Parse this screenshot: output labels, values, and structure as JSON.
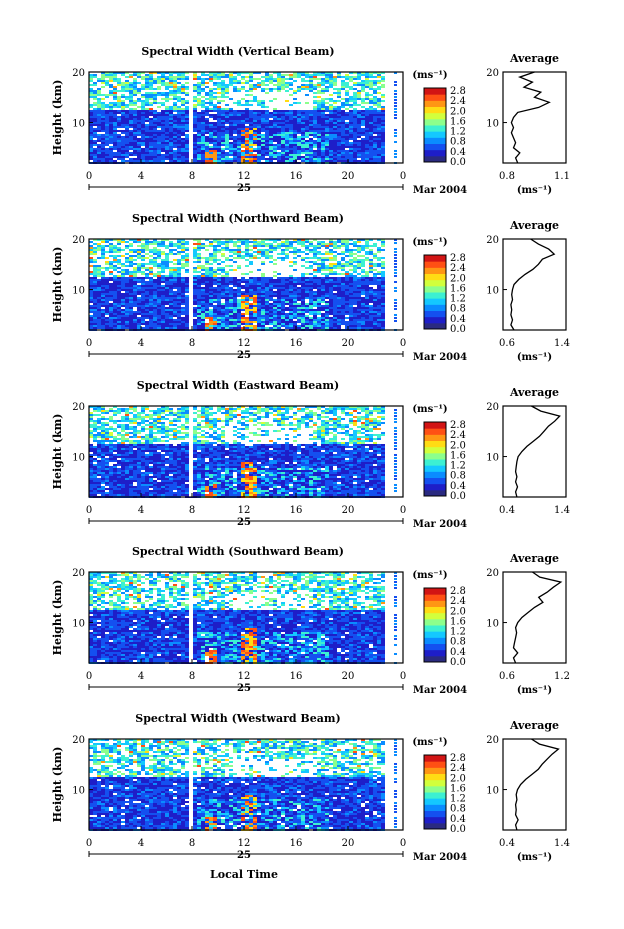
{
  "chart_data": [
    {
      "type": "heatmap",
      "title": "Spectral Width (Vertical Beam)",
      "ylabel": "Height (km)",
      "xticks": [
        "0",
        "4",
        "8",
        "12",
        "16",
        "20",
        "0"
      ],
      "day_label": "25",
      "month_label": "Mar 2004",
      "ylim": [
        2,
        20
      ],
      "yticks": [
        "10",
        "20"
      ],
      "colorbar_unit": "(ms⁻¹)",
      "colorbar_ticks": [
        "0.0",
        "0.4",
        "0.8",
        "1.2",
        "1.6",
        "2.0",
        "2.4",
        "2.8"
      ],
      "profile": {
        "title": "Average",
        "xlabel": "(ms⁻¹)",
        "xticks": [
          "0.8",
          "1.1"
        ],
        "xlim": [
          0.8,
          1.1
        ],
        "heights": [
          2,
          3,
          4,
          5,
          6,
          7,
          8,
          9,
          10,
          11,
          12,
          13,
          14,
          15,
          16,
          17,
          18,
          19,
          20
        ],
        "values": [
          0.87,
          0.86,
          0.88,
          0.85,
          0.86,
          0.85,
          0.84,
          0.85,
          0.84,
          0.85,
          0.87,
          0.97,
          1.02,
          0.95,
          0.98,
          0.9,
          0.94,
          0.88,
          0.95
        ]
      }
    },
    {
      "type": "heatmap",
      "title": "Spectral Width (Northward Beam)",
      "ylabel": "Height (km)",
      "xticks": [
        "0",
        "4",
        "8",
        "12",
        "16",
        "20",
        "0"
      ],
      "day_label": "25",
      "month_label": "Mar 2004",
      "ylim": [
        2,
        20
      ],
      "yticks": [
        "10",
        "20"
      ],
      "colorbar_unit": "(ms⁻¹)",
      "colorbar_ticks": [
        "0.0",
        "0.4",
        "0.8",
        "1.2",
        "1.6",
        "2.0",
        "2.4",
        "2.8"
      ],
      "profile": {
        "title": "Average",
        "xlabel": "(ms⁻¹)",
        "xticks": [
          "0.6",
          "1.4"
        ],
        "xlim": [
          0.6,
          1.4
        ],
        "heights": [
          2,
          3,
          4,
          5,
          6,
          7,
          8,
          9,
          10,
          11,
          12,
          13,
          14,
          15,
          16,
          17,
          18,
          19,
          20
        ],
        "values": [
          0.74,
          0.7,
          0.72,
          0.7,
          0.71,
          0.7,
          0.72,
          0.71,
          0.72,
          0.74,
          0.8,
          0.88,
          0.98,
          1.05,
          1.1,
          1.25,
          1.18,
          1.05,
          0.95
        ]
      }
    },
    {
      "type": "heatmap",
      "title": "Spectral Width (Eastward Beam)",
      "ylabel": "Height (km)",
      "xticks": [
        "0",
        "4",
        "8",
        "12",
        "16",
        "20",
        "0"
      ],
      "day_label": "25",
      "month_label": "Mar 2004",
      "ylim": [
        2,
        20
      ],
      "yticks": [
        "10",
        "20"
      ],
      "colorbar_unit": "(ms⁻¹)",
      "colorbar_ticks": [
        "0.0",
        "0.4",
        "0.8",
        "1.2",
        "1.6",
        "2.0",
        "2.4",
        "2.8"
      ],
      "profile": {
        "title": "Average",
        "xlabel": "",
        "xticks": [
          "0.4",
          "1.4"
        ],
        "xlim": [
          0.4,
          1.4
        ],
        "heights": [
          2,
          3,
          4,
          5,
          6,
          7,
          8,
          9,
          10,
          11,
          12,
          13,
          14,
          15,
          16,
          17,
          18,
          19,
          20
        ],
        "values": [
          0.62,
          0.6,
          0.63,
          0.6,
          0.62,
          0.6,
          0.61,
          0.62,
          0.64,
          0.7,
          0.78,
          0.88,
          0.98,
          1.05,
          1.12,
          1.22,
          1.3,
          1.0,
          0.85
        ]
      }
    },
    {
      "type": "heatmap",
      "title": "Spectral Width (Southward Beam)",
      "ylabel": "Height (km)",
      "xticks": [
        "0",
        "4",
        "8",
        "12",
        "16",
        "20",
        "0"
      ],
      "day_label": "25",
      "month_label": "Mar 2004",
      "ylim": [
        2,
        20
      ],
      "yticks": [
        "10",
        "20"
      ],
      "colorbar_unit": "(ms⁻¹)",
      "colorbar_ticks": [
        "0.0",
        "0.4",
        "0.8",
        "1.2",
        "1.6",
        "2.0",
        "2.4",
        "2.8"
      ],
      "profile": {
        "title": "Average",
        "xlabel": "(ms⁻¹)",
        "xticks": [
          "0.6",
          "1.2"
        ],
        "xlim": [
          0.6,
          1.2
        ],
        "heights": [
          2,
          3,
          4,
          5,
          6,
          7,
          8,
          9,
          10,
          11,
          12,
          13,
          14,
          15,
          16,
          17,
          18,
          19,
          20
        ],
        "values": [
          0.72,
          0.7,
          0.74,
          0.7,
          0.71,
          0.72,
          0.73,
          0.72,
          0.74,
          0.78,
          0.84,
          0.9,
          0.98,
          0.94,
          1.02,
          1.08,
          1.15,
          0.95,
          0.88
        ]
      }
    },
    {
      "type": "heatmap",
      "title": "Spectral Width (Westward Beam)",
      "ylabel": "Height (km)",
      "xticks": [
        "0",
        "4",
        "8",
        "12",
        "16",
        "20",
        "0"
      ],
      "day_label": "25",
      "month_label": "Mar 2004",
      "xlabel": "Local Time",
      "ylim": [
        2,
        20
      ],
      "yticks": [
        "10",
        "20"
      ],
      "colorbar_unit": "(ms⁻¹)",
      "colorbar_ticks": [
        "0.0",
        "0.4",
        "0.8",
        "1.2",
        "1.6",
        "2.0",
        "2.4",
        "2.8"
      ],
      "profile": {
        "title": "Average",
        "xlabel": "(ms⁻¹)",
        "xticks": [
          "0.4",
          "1.4"
        ],
        "xlim": [
          0.4,
          1.4
        ],
        "heights": [
          2,
          3,
          4,
          5,
          6,
          7,
          8,
          9,
          10,
          11,
          12,
          13,
          14,
          15,
          16,
          17,
          18,
          19,
          20
        ],
        "values": [
          0.62,
          0.6,
          0.64,
          0.6,
          0.61,
          0.6,
          0.62,
          0.61,
          0.63,
          0.68,
          0.76,
          0.86,
          0.96,
          1.02,
          1.1,
          1.18,
          1.28,
          0.98,
          0.85
        ]
      }
    }
  ],
  "colorbar_colors": [
    "#2a2a80",
    "#1e1ec8",
    "#1450f0",
    "#0a8cff",
    "#14c8ff",
    "#3cf0d2",
    "#8cff8c",
    "#d2ff3c",
    "#ffdc14",
    "#ff9614",
    "#ff5014",
    "#d21414"
  ]
}
